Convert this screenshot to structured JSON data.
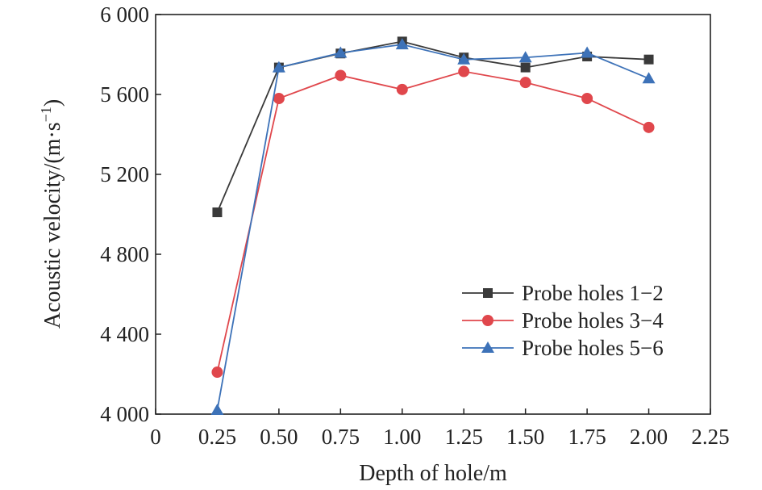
{
  "chart_data": {
    "type": "line",
    "xlabel": "Depth of hole/m",
    "ylabel_parts": [
      "Acoustic velocity/(m·s",
      "−1",
      ")"
    ],
    "xlim": [
      0,
      2.25
    ],
    "ylim": [
      4000,
      6000
    ],
    "x_ticks": [
      0,
      0.25,
      0.5,
      0.75,
      1.0,
      1.25,
      1.5,
      1.75,
      2.0,
      2.25
    ],
    "x_tick_labels": [
      "0",
      "0.25",
      "0.50",
      "0.75",
      "1.00",
      "1.25",
      "1.50",
      "1.75",
      "2.00",
      "2.25"
    ],
    "y_ticks": [
      4000,
      4400,
      4800,
      5200,
      5600,
      6000
    ],
    "y_tick_labels": [
      "4 000",
      "4 400",
      "4 800",
      "5 200",
      "5 600",
      "6 000"
    ],
    "x": [
      0.25,
      0.5,
      0.75,
      1.0,
      1.25,
      1.5,
      1.75,
      2.0
    ],
    "legend_position": "bottom-right",
    "grid": false,
    "series": [
      {
        "name": "Probe holes 1−2",
        "color": "#3a3a3a",
        "marker": "square",
        "values": [
          5010,
          5735,
          5805,
          5865,
          5785,
          5735,
          5790,
          5775
        ]
      },
      {
        "name": "Probe holes 3−4",
        "color": "#e0474c",
        "marker": "circle",
        "values": [
          4210,
          5580,
          5695,
          5625,
          5715,
          5660,
          5580,
          5435
        ]
      },
      {
        "name": "Probe holes 5−6",
        "color": "#3d72b8",
        "marker": "triangle",
        "values": [
          4020,
          5735,
          5808,
          5850,
          5775,
          5785,
          5808,
          5680
        ]
      }
    ]
  }
}
